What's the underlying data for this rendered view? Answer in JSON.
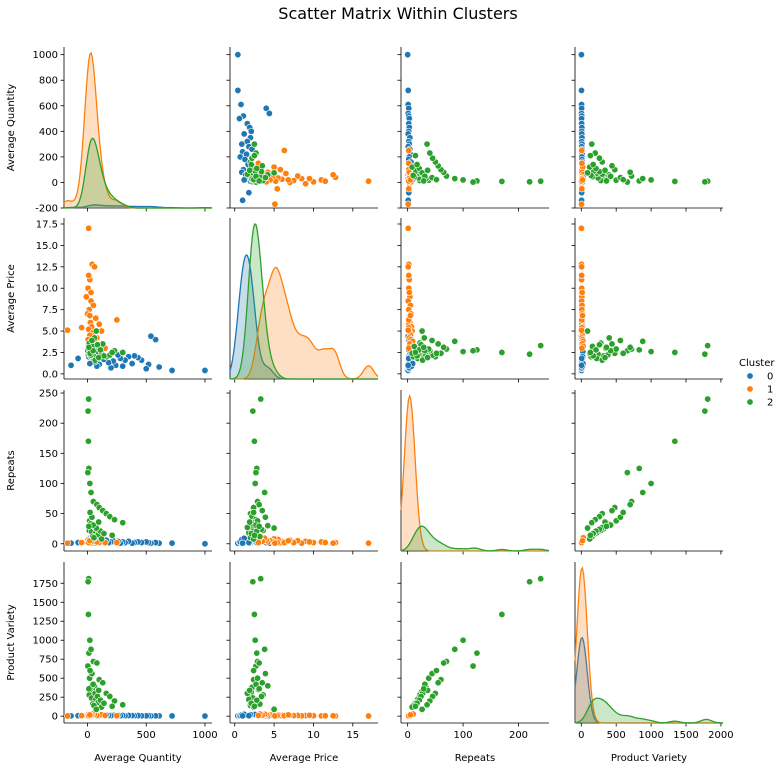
{
  "chart_data": {
    "type": "scatter",
    "title": "Scatter Matrix Within Clusters",
    "variables": [
      "Average Quantity",
      "Average Price",
      "Repeats",
      "Product Variety"
    ],
    "legend": {
      "title": "Cluster",
      "placement": "right",
      "entries": [
        {
          "label": "0",
          "color": "#1f77b4"
        },
        {
          "label": "1",
          "color": "#ff7f0e"
        },
        {
          "label": "2",
          "color": "#2ca02c"
        }
      ]
    },
    "axes": {
      "Average Quantity": {
        "range": [
          -200,
          1060
        ],
        "ticks": [
          0,
          500,
          1000
        ],
        "row_ticks": [
          -200,
          0,
          200,
          400,
          600,
          800,
          1000
        ]
      },
      "Average Price": {
        "range": [
          -0.6,
          18.2
        ],
        "ticks": [
          0,
          5,
          10,
          15
        ],
        "row_ticks": [
          0.0,
          2.5,
          5.0,
          7.5,
          10.0,
          12.5,
          15.0,
          17.5
        ]
      },
      "Repeats": {
        "range": [
          -12,
          255
        ],
        "ticks": [
          0,
          100,
          200
        ],
        "row_ticks": [
          0,
          50,
          100,
          150,
          200,
          250
        ]
      },
      "Product Variety": {
        "range": [
          -90,
          2030
        ],
        "ticks": [
          0,
          500,
          1000,
          1500,
          2000
        ],
        "row_ticks": [
          0,
          250,
          500,
          750,
          1000,
          1250,
          1500,
          1750
        ]
      }
    },
    "diagonal_kde_peak": {
      "Average Quantity": {
        "0": 0.02,
        "1": 1.0,
        "2": 0.45
      },
      "Average Price": {
        "0": 0.8,
        "1": 0.72,
        "2": 1.0
      },
      "Repeats": {
        "0": 0.0,
        "1": 1.0,
        "2": 0.16
      },
      "Product Variety": {
        "0": 0.55,
        "1": 1.0,
        "2": 0.16
      }
    },
    "series": [
      {
        "name": "0",
        "color": "#1f77b4",
        "points": [
          {
            "Average Quantity": 1000,
            "Average Price": 0.4,
            "Repeats": 0,
            "Product Variety": 2
          },
          {
            "Average Quantity": 720,
            "Average Price": 0.4,
            "Repeats": 1,
            "Product Variety": 3
          },
          {
            "Average Quantity": 610,
            "Average Price": 0.8,
            "Repeats": 1,
            "Product Variety": 4
          },
          {
            "Average Quantity": 580,
            "Average Price": 4.0,
            "Repeats": 2,
            "Product Variety": 5
          },
          {
            "Average Quantity": 540,
            "Average Price": 4.4,
            "Repeats": 1,
            "Product Variety": 3
          },
          {
            "Average Quantity": 520,
            "Average Price": 1.1,
            "Repeats": 2,
            "Product Variety": 6
          },
          {
            "Average Quantity": 500,
            "Average Price": 0.6,
            "Repeats": 3,
            "Product Variety": 4
          },
          {
            "Average Quantity": 460,
            "Average Price": 1.6,
            "Repeats": 2,
            "Product Variety": 5
          },
          {
            "Average Quantity": 430,
            "Average Price": 1.9,
            "Repeats": 3,
            "Product Variety": 8
          },
          {
            "Average Quantity": 400,
            "Average Price": 2.1,
            "Repeats": 2,
            "Product Variety": 6
          },
          {
            "Average Quantity": 380,
            "Average Price": 1.2,
            "Repeats": 1,
            "Product Variety": 7
          },
          {
            "Average Quantity": 350,
            "Average Price": 2.0,
            "Repeats": 4,
            "Product Variety": 9
          },
          {
            "Average Quantity": 320,
            "Average Price": 1.6,
            "Repeats": 2,
            "Product Variety": 5
          },
          {
            "Average Quantity": 300,
            "Average Price": 0.9,
            "Repeats": 3,
            "Product Variety": 10
          },
          {
            "Average Quantity": 280,
            "Average Price": 1.8,
            "Repeats": 1,
            "Product Variety": 6
          },
          {
            "Average Quantity": 260,
            "Average Price": 2.2,
            "Repeats": 4,
            "Product Variety": 11
          },
          {
            "Average Quantity": 240,
            "Average Price": 1.0,
            "Repeats": 2,
            "Product Variety": 7
          },
          {
            "Average Quantity": 220,
            "Average Price": 1.5,
            "Repeats": 5,
            "Product Variety": 12
          },
          {
            "Average Quantity": 200,
            "Average Price": 0.7,
            "Repeats": 3,
            "Product Variety": 8
          },
          {
            "Average Quantity": 180,
            "Average Price": 1.3,
            "Repeats": 2,
            "Product Variety": 9
          },
          {
            "Average Quantity": 160,
            "Average Price": 2.0,
            "Repeats": 6,
            "Product Variety": 14
          },
          {
            "Average Quantity": 140,
            "Average Price": 1.7,
            "Repeats": 3,
            "Product Variety": 10
          },
          {
            "Average Quantity": 120,
            "Average Price": 2.5,
            "Repeats": 4,
            "Product Variety": 15
          },
          {
            "Average Quantity": 100,
            "Average Price": 1.1,
            "Repeats": 5,
            "Product Variety": 12
          },
          {
            "Average Quantity": 90,
            "Average Price": 2.8,
            "Repeats": 2,
            "Product Variety": 16
          },
          {
            "Average Quantity": 80,
            "Average Price": 0.9,
            "Repeats": 7,
            "Product Variety": 18
          },
          {
            "Average Quantity": 60,
            "Average Price": 1.4,
            "Repeats": 3,
            "Product Variety": 13
          },
          {
            "Average Quantity": 50,
            "Average Price": 2.3,
            "Repeats": 8,
            "Product Variety": 20
          },
          {
            "Average Quantity": 40,
            "Average Price": 1.9,
            "Repeats": 4,
            "Product Variety": 17
          },
          {
            "Average Quantity": 30,
            "Average Price": 2.6,
            "Repeats": 6,
            "Product Variety": 22
          },
          {
            "Average Quantity": 20,
            "Average Price": 1.2,
            "Repeats": 9,
            "Product Variety": 25
          },
          {
            "Average Quantity": 10,
            "Average Price": 2.0,
            "Repeats": 5,
            "Product Variety": 19
          },
          {
            "Average Quantity": -80,
            "Average Price": 1.8,
            "Repeats": 2,
            "Product Variety": 6
          },
          {
            "Average Quantity": -140,
            "Average Price": 1.0,
            "Repeats": 1,
            "Product Variety": 4
          }
        ]
      },
      {
        "name": "1",
        "color": "#ff7f0e",
        "points": [
          {
            "Average Quantity": 10,
            "Average Price": 17.0,
            "Repeats": 1,
            "Product Variety": 2
          },
          {
            "Average Quantity": 40,
            "Average Price": 12.8,
            "Repeats": 2,
            "Product Variety": 3
          },
          {
            "Average Quantity": 60,
            "Average Price": 12.5,
            "Repeats": 1,
            "Product Variety": 5
          },
          {
            "Average Quantity": 20,
            "Average Price": 11.0,
            "Repeats": 3,
            "Product Variety": 4
          },
          {
            "Average Quantity": 5,
            "Average Price": 10.0,
            "Repeats": 2,
            "Product Variety": 6
          },
          {
            "Average Quantity": -10,
            "Average Price": 9.0,
            "Repeats": 4,
            "Product Variety": 8
          },
          {
            "Average Quantity": 30,
            "Average Price": 8.5,
            "Repeats": 1,
            "Product Variety": 5
          },
          {
            "Average Quantity": 50,
            "Average Price": 8.0,
            "Repeats": 5,
            "Product Variety": 10
          },
          {
            "Average Quantity": 15,
            "Average Price": 7.5,
            "Repeats": 2,
            "Product Variety": 7
          },
          {
            "Average Quantity": 0,
            "Average Price": 7.0,
            "Repeats": 6,
            "Product Variety": 12
          },
          {
            "Average Quantity": 70,
            "Average Price": 6.5,
            "Repeats": 3,
            "Product Variety": 9
          },
          {
            "Average Quantity": 25,
            "Average Price": 6.0,
            "Repeats": 4,
            "Product Variety": 15
          },
          {
            "Average Quantity": 100,
            "Average Price": 5.8,
            "Repeats": 2,
            "Product Variety": 8
          },
          {
            "Average Quantity": 35,
            "Average Price": 5.5,
            "Repeats": 7,
            "Product Variety": 18
          },
          {
            "Average Quantity": 10,
            "Average Price": 5.2,
            "Repeats": 3,
            "Product Variety": 11
          },
          {
            "Average Quantity": 250,
            "Average Price": 6.3,
            "Repeats": 2,
            "Product Variety": 6
          },
          {
            "Average Quantity": 120,
            "Average Price": 5.0,
            "Repeats": 8,
            "Product Variety": 20
          },
          {
            "Average Quantity": 45,
            "Average Price": 4.8,
            "Repeats": 4,
            "Product Variety": 13
          },
          {
            "Average Quantity": 20,
            "Average Price": 4.5,
            "Repeats": 5,
            "Product Variety": 16
          },
          {
            "Average Quantity": 80,
            "Average Price": 4.2,
            "Repeats": 3,
            "Product Variety": 10
          },
          {
            "Average Quantity": 5,
            "Average Price": 4.0,
            "Repeats": 6,
            "Product Variety": 22
          },
          {
            "Average Quantity": -50,
            "Average Price": 5.4,
            "Repeats": 2,
            "Product Variety": 7
          },
          {
            "Average Quantity": -170,
            "Average Price": 5.1,
            "Repeats": 1,
            "Product Variety": 3
          },
          {
            "Average Quantity": 60,
            "Average Price": 3.8,
            "Repeats": 9,
            "Product Variety": 25
          },
          {
            "Average Quantity": 15,
            "Average Price": 3.5,
            "Repeats": 4,
            "Product Variety": 14
          },
          {
            "Average Quantity": 40,
            "Average Price": 3.2,
            "Repeats": 10,
            "Product Variety": 28
          },
          {
            "Average Quantity": 150,
            "Average Price": 3.0,
            "Repeats": 2,
            "Product Variety": 9
          },
          {
            "Average Quantity": 30,
            "Average Price": 9.5,
            "Repeats": 3,
            "Product Variety": 12
          },
          {
            "Average Quantity": 10,
            "Average Price": 11.5,
            "Repeats": 2,
            "Product Variety": 5
          },
          {
            "Average Quantity": 20,
            "Average Price": 6.8,
            "Repeats": 5,
            "Product Variety": 17
          }
        ]
      },
      {
        "name": "2",
        "color": "#2ca02c",
        "points": [
          {
            "Average Quantity": 10,
            "Average Price": 3.3,
            "Repeats": 240,
            "Product Variety": 1810
          },
          {
            "Average Quantity": 5,
            "Average Price": 2.3,
            "Repeats": 220,
            "Product Variety": 1770
          },
          {
            "Average Quantity": 8,
            "Average Price": 2.5,
            "Repeats": 170,
            "Product Variety": 1340
          },
          {
            "Average Quantity": 12,
            "Average Price": 2.8,
            "Repeats": 125,
            "Product Variety": 830
          },
          {
            "Average Quantity": 3,
            "Average Price": 2.7,
            "Repeats": 118,
            "Product Variety": 660
          },
          {
            "Average Quantity": 20,
            "Average Price": 2.6,
            "Repeats": 100,
            "Product Variety": 1000
          },
          {
            "Average Quantity": 30,
            "Average Price": 3.8,
            "Repeats": 85,
            "Product Variety": 880
          },
          {
            "Average Quantity": 50,
            "Average Price": 2.9,
            "Repeats": 70,
            "Product Variety": 720
          },
          {
            "Average Quantity": 80,
            "Average Price": 3.1,
            "Repeats": 65,
            "Product Variety": 700
          },
          {
            "Average Quantity": 100,
            "Average Price": 2.4,
            "Repeats": 60,
            "Product Variety": 480
          },
          {
            "Average Quantity": 130,
            "Average Price": 3.5,
            "Repeats": 55,
            "Product Variety": 440
          },
          {
            "Average Quantity": 160,
            "Average Price": 2.0,
            "Repeats": 50,
            "Product Variety": 300
          },
          {
            "Average Quantity": 190,
            "Average Price": 2.2,
            "Repeats": 45,
            "Product Variety": 260
          },
          {
            "Average Quantity": 230,
            "Average Price": 2.7,
            "Repeats": 40,
            "Product Variety": 200
          },
          {
            "Average Quantity": 300,
            "Average Price": 2.5,
            "Repeats": 35,
            "Product Variety": 150
          },
          {
            "Average Quantity": 60,
            "Average Price": 4.2,
            "Repeats": 30,
            "Product Variety": 400
          },
          {
            "Average Quantity": 40,
            "Average Price": 3.0,
            "Repeats": 28,
            "Product Variety": 350
          },
          {
            "Average Quantity": 25,
            "Average Price": 2.1,
            "Repeats": 25,
            "Product Variety": 320
          },
          {
            "Average Quantity": 15,
            "Average Price": 3.6,
            "Repeats": 22,
            "Product Variety": 280
          },
          {
            "Average Quantity": 35,
            "Average Price": 2.3,
            "Repeats": 20,
            "Product Variety": 240
          },
          {
            "Average Quantity": 70,
            "Average Price": 1.8,
            "Repeats": 18,
            "Product Variety": 220
          },
          {
            "Average Quantity": 90,
            "Average Price": 2.6,
            "Repeats": 15,
            "Product Variety": 180
          },
          {
            "Average Quantity": 45,
            "Average Price": 3.2,
            "Repeats": 12,
            "Product Variety": 160
          },
          {
            "Average Quantity": 55,
            "Average Price": 2.0,
            "Repeats": 10,
            "Product Variety": 140
          },
          {
            "Average Quantity": 120,
            "Average Price": 2.4,
            "Repeats": 8,
            "Product Variety": 120
          },
          {
            "Average Quantity": 18,
            "Average Price": 2.9,
            "Repeats": 38,
            "Product Variety": 500
          },
          {
            "Average Quantity": 28,
            "Average Price": 2.2,
            "Repeats": 33,
            "Product Variety": 380
          },
          {
            "Average Quantity": 65,
            "Average Price": 1.6,
            "Repeats": 27,
            "Product Variety": 300
          },
          {
            "Average Quantity": 85,
            "Average Price": 3.4,
            "Repeats": 24,
            "Product Variety": 260
          },
          {
            "Average Quantity": 110,
            "Average Price": 2.8,
            "Repeats": 21,
            "Product Variety": 210
          },
          {
            "Average Quantity": 140,
            "Average Price": 2.1,
            "Repeats": 17,
            "Product Variety": 170
          },
          {
            "Average Quantity": 210,
            "Average Price": 2.5,
            "Repeats": 14,
            "Product Variety": 130
          },
          {
            "Average Quantity": 75,
            "Average Price": 5.0,
            "Repeats": 26,
            "Product Variety": 90
          },
          {
            "Average Quantity": 38,
            "Average Price": 3.9,
            "Repeats": 44,
            "Product Variety": 560
          },
          {
            "Average Quantity": 22,
            "Average Price": 2.4,
            "Repeats": 52,
            "Product Variety": 600
          },
          {
            "Average Quantity": 95,
            "Average Price": 1.9,
            "Repeats": 36,
            "Product Variety": 340
          },
          {
            "Average Quantity": 48,
            "Average Price": 2.7,
            "Repeats": 31,
            "Product Variety": 420
          },
          {
            "Average Quantity": 12,
            "Average Price": 3.1,
            "Repeats": 29,
            "Product Variety": 360
          }
        ]
      }
    ]
  }
}
